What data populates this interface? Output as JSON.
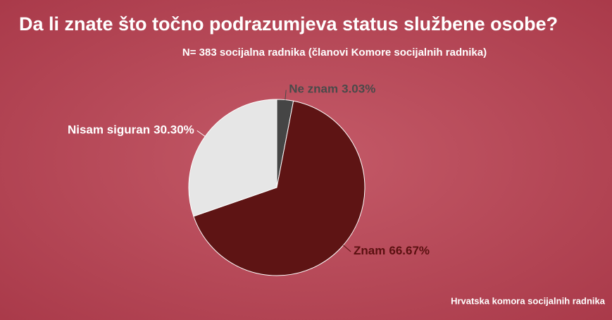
{
  "chart_data": {
    "type": "pie",
    "title": "Da li znate što točno podrazumjeva status službene osobe?",
    "subtitle": "N= 383 socijalna radnika (članovi Komore socijalnih radnika)",
    "categories": [
      "Ne znam",
      "Znam",
      "Nisam siguran"
    ],
    "values": [
      3.03,
      66.67,
      30.3
    ],
    "value_labels": [
      "3.03%",
      "66.67%",
      "30.30%"
    ],
    "colors": [
      "#454545",
      "#5e1414",
      "#e6e6e6"
    ],
    "source": "Hrvatska komora socijalnih radnika"
  }
}
